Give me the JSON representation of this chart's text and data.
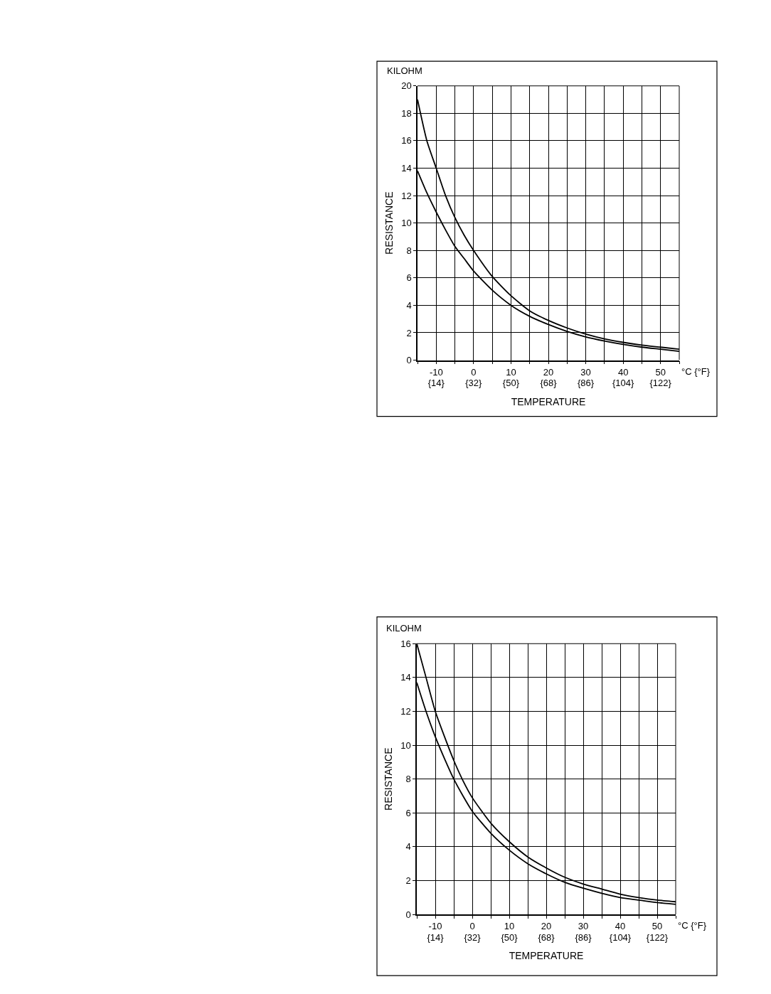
{
  "chart_data": [
    {
      "type": "line",
      "xlabel": "TEMPERATURE",
      "ylabel": "RESISTANCE",
      "annotations": [
        "KILOHM",
        "°C {°F}"
      ],
      "x": [
        -15,
        -12.5,
        -10,
        -7.5,
        -5,
        -2.5,
        0,
        5,
        10,
        15,
        20,
        25,
        30,
        35,
        40,
        45,
        50,
        55
      ],
      "series": [
        {
          "color": "#000000",
          "values": [
            19,
            16,
            14,
            12,
            10.4,
            9.1,
            8,
            6.1,
            4.7,
            3.6,
            2.9,
            2.35,
            1.9,
            1.55,
            1.3,
            1.1,
            0.95,
            0.8
          ]
        },
        {
          "color": "#000000",
          "values": [
            13.8,
            12.2,
            10.8,
            9.5,
            8.3,
            7.4,
            6.5,
            5.1,
            4.0,
            3.2,
            2.6,
            2.1,
            1.7,
            1.4,
            1.15,
            0.95,
            0.8,
            0.65
          ]
        }
      ],
      "xlim": [
        -15,
        55
      ],
      "xticks": [
        {
          "value": -15,
          "label": null
        },
        -10,
        {
          "value": -5,
          "label": null
        },
        0,
        {
          "value": 5,
          "label": null
        },
        10,
        {
          "value": 15,
          "label": null
        },
        20,
        {
          "value": 25,
          "label": null
        },
        30,
        {
          "value": 35,
          "label": null
        },
        40,
        {
          "value": 45,
          "label": null
        },
        50,
        {
          "value": 55,
          "label": null
        }
      ],
      "x2lim": [
        5,
        131
      ],
      "x2ticks": [
        {
          "value": 14,
          "label": "{14}"
        },
        {
          "value": 32,
          "label": "{32}"
        },
        {
          "value": 50,
          "label": "{50}"
        },
        {
          "value": 68,
          "label": "{68}"
        },
        {
          "value": 86,
          "label": "{86}"
        },
        {
          "value": 104,
          "label": "{104}"
        },
        {
          "value": 122,
          "label": "{122}"
        }
      ],
      "ylim": [
        0,
        20
      ],
      "yticks": [
        0,
        2,
        4,
        6,
        8,
        10,
        12,
        14,
        16,
        18,
        20
      ],
      "grid": true,
      "marker": "none",
      "line_style": "solid"
    },
    {
      "type": "line",
      "xlabel": "TEMPERATURE",
      "ylabel": "RESISTANCE",
      "annotations": [
        "KILOHM",
        "°C {°F}"
      ],
      "x": [
        -15,
        -12.5,
        -10,
        -7.5,
        -5,
        -2.5,
        0,
        5,
        10,
        15,
        20,
        25,
        30,
        35,
        40,
        45,
        50,
        55
      ],
      "series": [
        {
          "color": "#000000",
          "values": [
            16,
            14,
            12,
            10.5,
            9.1,
            7.9,
            6.9,
            5.4,
            4.3,
            3.4,
            2.75,
            2.2,
            1.8,
            1.5,
            1.2,
            1.0,
            0.85,
            0.75
          ]
        },
        {
          "color": "#000000",
          "values": [
            13.7,
            12,
            10.5,
            9.2,
            8,
            7,
            6.1,
            4.8,
            3.8,
            3.0,
            2.4,
            1.9,
            1.55,
            1.25,
            1.0,
            0.85,
            0.7,
            0.6
          ]
        }
      ],
      "xlim": [
        -15,
        55
      ],
      "xticks": [
        {
          "value": -15,
          "label": null
        },
        -10,
        {
          "value": -5,
          "label": null
        },
        0,
        {
          "value": 5,
          "label": null
        },
        10,
        {
          "value": 15,
          "label": null
        },
        20,
        {
          "value": 25,
          "label": null
        },
        30,
        {
          "value": 35,
          "label": null
        },
        40,
        {
          "value": 45,
          "label": null
        },
        50,
        {
          "value": 55,
          "label": null
        }
      ],
      "x2lim": [
        5,
        131
      ],
      "x2ticks": [
        {
          "value": 14,
          "label": "{14}"
        },
        {
          "value": 32,
          "label": "{32}"
        },
        {
          "value": 50,
          "label": "{50}"
        },
        {
          "value": 68,
          "label": "{68}"
        },
        {
          "value": 86,
          "label": "{86}"
        },
        {
          "value": 104,
          "label": "{104}"
        },
        {
          "value": 122,
          "label": "{122}"
        }
      ],
      "ylim": [
        0,
        16
      ],
      "yticks": [
        0,
        2,
        4,
        6,
        8,
        10,
        12,
        14,
        16
      ],
      "grid": true,
      "marker": "none",
      "line_style": "solid"
    }
  ]
}
